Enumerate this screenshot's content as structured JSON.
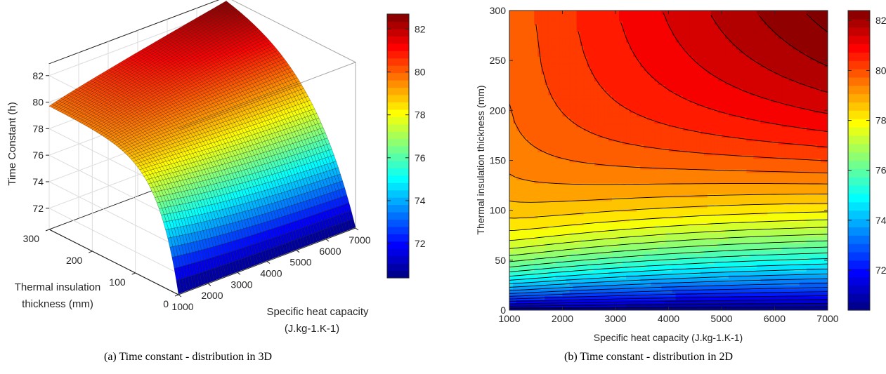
{
  "chart_data": [
    {
      "type": "surface",
      "title": "",
      "xlabel_line1": "Specific heat capacity",
      "xlabel_line2": "(J.kg-1.K-1)",
      "ylabel_line1": "Thermal insulation",
      "ylabel_line2": "thickness (mm)",
      "zlabel": "Time Constant (h)",
      "x_ticks": [
        1000,
        2000,
        3000,
        4000,
        5000,
        6000,
        7000
      ],
      "y_ticks": [
        0,
        100,
        200,
        300
      ],
      "z_ticks": [
        72,
        74,
        76,
        78,
        80,
        82
      ],
      "xlim": [
        1000,
        7000
      ],
      "ylim": [
        0,
        300
      ],
      "zlim": [
        70.4,
        82.7
      ],
      "colormap": "jet",
      "colorbar_ticks": [
        72,
        74,
        76,
        78,
        80,
        82
      ],
      "corner_values": [
        {
          "x": 1000,
          "y": 300,
          "z": 79.7
        },
        {
          "x": 7000,
          "y": 300,
          "z": 82.6
        },
        {
          "x": 1000,
          "y": 0,
          "z": 70.4
        },
        {
          "x": 7000,
          "y": 0,
          "z": 70.6
        }
      ]
    },
    {
      "type": "contour",
      "title": "",
      "xlabel": "Specific heat capacity (J.kg-1.K-1)",
      "ylabel": "Thermal insulation thickness (mm)",
      "x_ticks": [
        1000,
        2000,
        3000,
        4000,
        5000,
        6000,
        7000
      ],
      "y_ticks": [
        0,
        50,
        100,
        150,
        200,
        250,
        300
      ],
      "xlim": [
        1000,
        7000
      ],
      "ylim": [
        0,
        300
      ],
      "colormap": "jet",
      "colorbar_ticks": [
        72,
        74,
        76,
        78,
        80,
        82
      ],
      "colorbar_range": [
        70.4,
        82.4
      ]
    }
  ],
  "captions": {
    "a": "(a)  Time constant - distribution in 3D",
    "b": "(b)  Time constant - distribution in 2D"
  }
}
